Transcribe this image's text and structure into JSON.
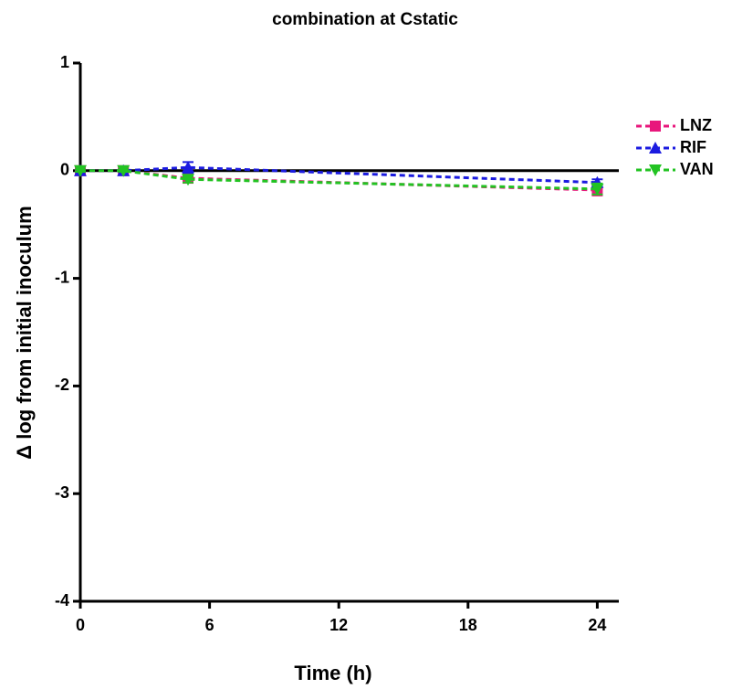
{
  "chart_data": {
    "type": "line",
    "title": "combination at Cstatic",
    "x_label": "Time (h)",
    "y_label": "Δ log from initial inoculum",
    "x": [
      0,
      2,
      5,
      24
    ],
    "series": [
      {
        "name": "LNZ",
        "color": "#e8177c",
        "marker": "square",
        "values": [
          0,
          0,
          -0.07,
          -0.18
        ],
        "errors": [
          0.01,
          0.02,
          0.03,
          0.05
        ]
      },
      {
        "name": "RIF",
        "color": "#1b1be0",
        "marker": "triangle-up",
        "values": [
          0,
          0,
          0.03,
          -0.11
        ],
        "errors": [
          0.01,
          0.01,
          0.05,
          0.03
        ]
      },
      {
        "name": "VAN",
        "color": "#22c322",
        "marker": "triangle-down",
        "values": [
          0,
          0,
          -0.08,
          -0.17
        ],
        "errors": [
          0.01,
          0.01,
          0.03,
          0.05
        ]
      }
    ],
    "hline": 0,
    "xlim": [
      0,
      25
    ],
    "xticks": [
      0,
      6,
      12,
      18,
      24
    ],
    "ylim": [
      -4,
      1
    ],
    "yticks": [
      -4,
      -3,
      -2,
      -1,
      0,
      1
    ],
    "dashed": true,
    "legend": "right"
  }
}
